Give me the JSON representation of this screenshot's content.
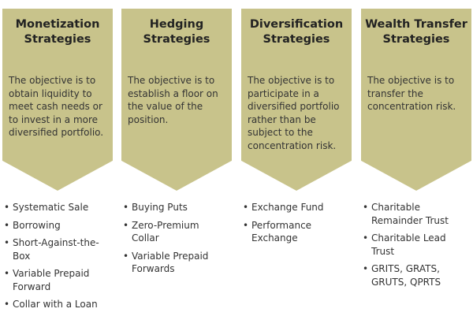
{
  "columns": [
    {
      "title_lines": [
        "Monetization",
        "Strategies"
      ],
      "description_lines": [
        "The objective is to",
        "obtain liquidity to",
        "meet cash needs or",
        "to invest in a more",
        "diversified portfolio."
      ],
      "items": [
        [
          "Systematic Sale"
        ],
        [
          "Borrowing"
        ],
        [
          "Short-Against-the-",
          "Box"
        ],
        [
          "Variable Prepaid",
          "Forward"
        ],
        [
          "Collar with a Loan"
        ]
      ]
    },
    {
      "title_lines": [
        "Hedging",
        "Strategies"
      ],
      "description_lines": [
        "The objective is to",
        "establish a floor on",
        "the value of the",
        "position."
      ],
      "items": [
        [
          "Buying Puts"
        ],
        [
          "Zero-Premium",
          "Collar"
        ],
        [
          "Variable Prepaid",
          "Forwards"
        ]
      ]
    },
    {
      "title_lines": [
        "Diversification",
        "Strategies"
      ],
      "description_lines": [
        "The objective is to",
        "participate in a",
        "diversified portfolio",
        "rather than be",
        "subject to the",
        "concentration risk."
      ],
      "items": [
        [
          "Exchange Fund"
        ],
        [
          "Performance",
          "Exchange"
        ]
      ]
    },
    {
      "title_lines": [
        "Wealth Transfer",
        "Strategies"
      ],
      "description_lines": [
        "The objective is to",
        "transfer the",
        "concentration risk."
      ],
      "items": [
        [
          "Charitable",
          "Remainder Trust"
        ],
        [
          "Charitable Lead",
          "Trust"
        ],
        [
          "GRITS, GRATS,",
          "GRUTS, QPRTS"
        ]
      ]
    }
  ],
  "bullet_char": "•",
  "colors": {
    "chevron_fill": "#c8c38b",
    "text": "#333333",
    "title": "#222222"
  }
}
